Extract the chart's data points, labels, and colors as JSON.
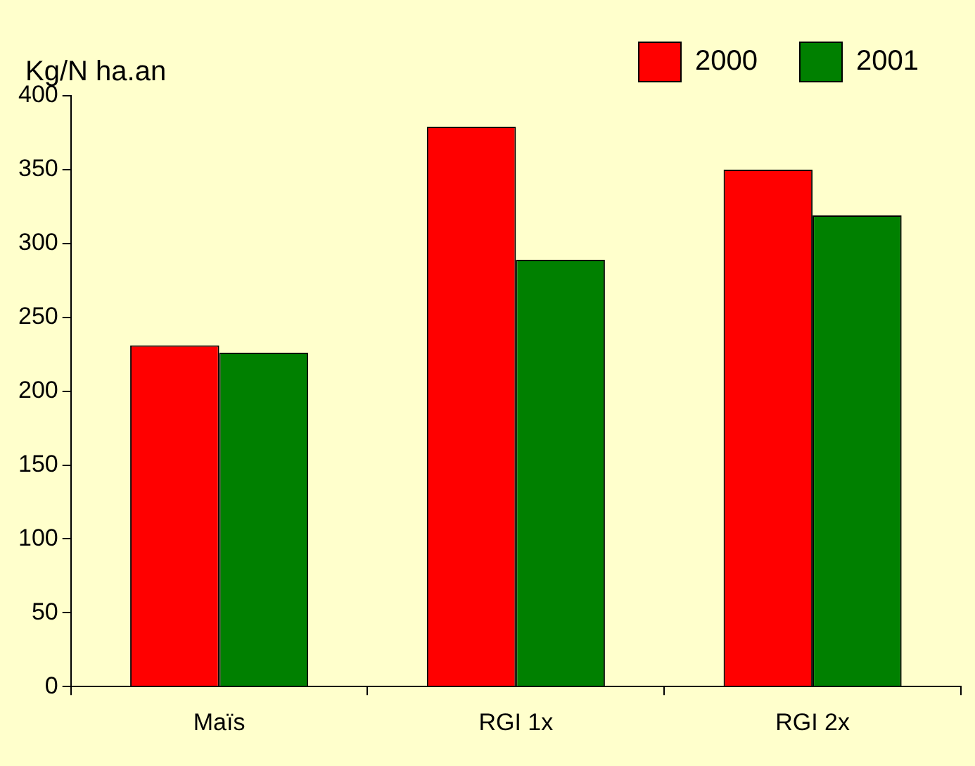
{
  "chart_data": {
    "type": "bar",
    "ylabel": "Kg/N ha.an",
    "categories": [
      "Maïs",
      "RGI 1x",
      "RGI 2x"
    ],
    "series": [
      {
        "name": "2000",
        "color": "#ff0000",
        "values": [
          231,
          379,
          350
        ]
      },
      {
        "name": "2001",
        "color": "#008000",
        "values": [
          226,
          289,
          319
        ]
      }
    ],
    "ylim": [
      0,
      400
    ],
    "yticks": [
      0,
      50,
      100,
      150,
      200,
      250,
      300,
      350,
      400
    ],
    "grid": false,
    "legend": "top right"
  }
}
